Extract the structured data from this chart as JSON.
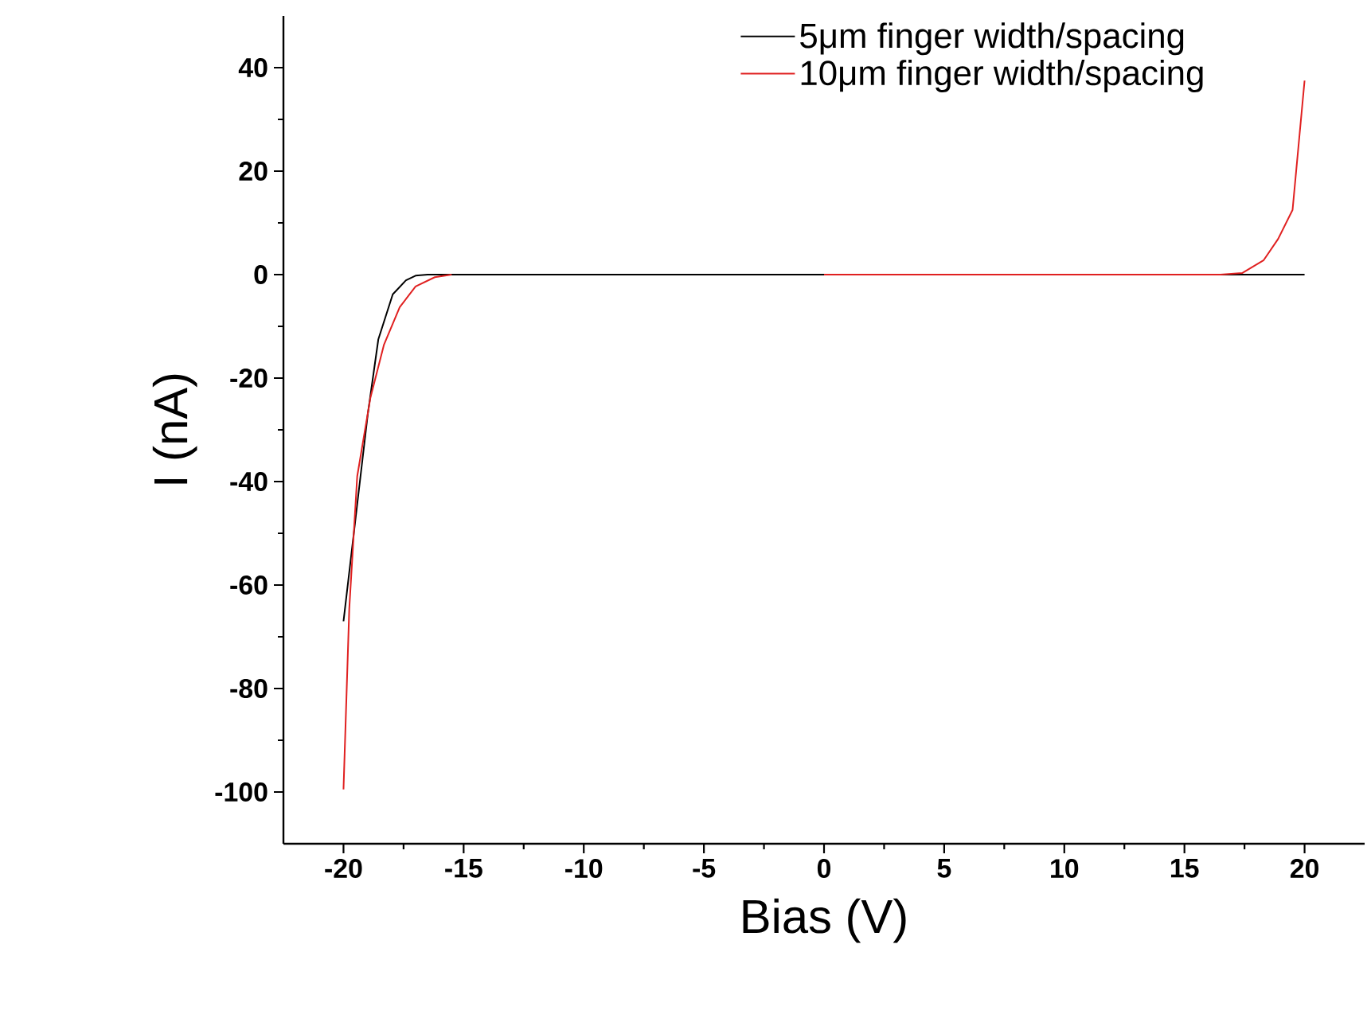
{
  "chart_data": {
    "type": "line",
    "xlabel": "Bias (V)",
    "ylabel": "I (nA)",
    "xlim": [
      -22.5,
      22.5
    ],
    "ylim": [
      -110,
      50
    ],
    "xticks": [
      -20,
      -15,
      -10,
      -5,
      0,
      5,
      10,
      15,
      20
    ],
    "yticks": [
      -100,
      -80,
      -60,
      -40,
      -20,
      0,
      20,
      40
    ],
    "legend": "top right",
    "series": [
      {
        "name": "5μm finger width/spacing",
        "color": "#000000",
        "x": [
          -20,
          -18.99,
          -18.55,
          -17.95,
          -17.4,
          -17.0,
          -16.5,
          -10,
          0,
          10,
          20
        ],
        "values": [
          -67,
          -27,
          -12.5,
          -3.8,
          -1.1,
          -0.2,
          0,
          0,
          0,
          0,
          0
        ]
      },
      {
        "name": "10μm finger width/spacing",
        "color": "#e02020",
        "x": [
          -20,
          -19.76,
          -19.43,
          -18.88,
          -18.32,
          -17.66,
          -17.0,
          -16.2,
          -15.5,
          -14.5,
          0,
          10,
          16.5,
          17.4,
          18.3,
          18.9,
          19.5,
          20
        ],
        "values": [
          -99.5,
          -64.6,
          -39,
          -23.8,
          -13.6,
          -6.3,
          -2.3,
          -0.5,
          0,
          null,
          0,
          0,
          0,
          0.3,
          2.8,
          6.9,
          12.5,
          37.5
        ]
      }
    ]
  }
}
